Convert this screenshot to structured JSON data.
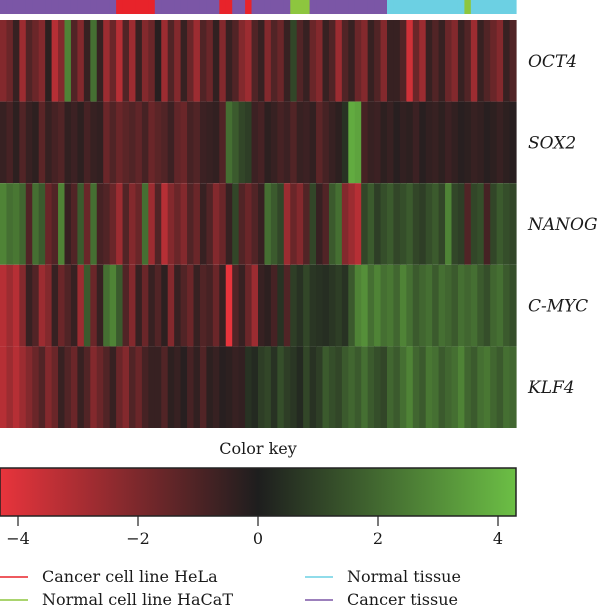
{
  "chart_data": {
    "type": "heatmap",
    "genes": [
      "OCT4",
      "SOX2",
      "NANOG",
      "C-MYC",
      "KLF4"
    ],
    "n_samples": 80,
    "sample_groups": [
      "ct",
      "ct",
      "ct",
      "ct",
      "ct",
      "ct",
      "ct",
      "ct",
      "ct",
      "ct",
      "ct",
      "ct",
      "ct",
      "ct",
      "ct",
      "ct",
      "ct",
      "ct",
      "hela",
      "hela",
      "hela",
      "hela",
      "hela",
      "hela",
      "ct",
      "ct",
      "ct",
      "ct",
      "ct",
      "ct",
      "ct",
      "ct",
      "ct",
      "ct",
      "hela",
      "hela",
      "ct",
      "ct",
      "hela",
      "ct",
      "ct",
      "ct",
      "ct",
      "ct",
      "ct",
      "hacat",
      "hacat",
      "hacat",
      "ct",
      "ct",
      "ct",
      "ct",
      "ct",
      "ct",
      "ct",
      "ct",
      "ct",
      "ct",
      "ct",
      "ct",
      "nt",
      "nt",
      "nt",
      "nt",
      "nt",
      "nt",
      "nt",
      "nt",
      "nt",
      "nt",
      "nt",
      "nt",
      "hacat",
      "nt",
      "nt",
      "nt",
      "nt",
      "nt",
      "nt",
      "nt"
    ],
    "values": {
      "OCT4": [
        -2.0,
        -1.5,
        -0.5,
        -2.5,
        -1.0,
        -1.5,
        -2.0,
        -0.3,
        -3.0,
        -2.0,
        2.5,
        -1.0,
        -2.0,
        -0.5,
        2.0,
        -0.5,
        -2.5,
        -1.5,
        -3.0,
        -1.0,
        -2.5,
        -0.5,
        -2.0,
        -1.5,
        -0.2,
        -2.5,
        -1.0,
        -2.0,
        -0.5,
        -1.5,
        -2.5,
        -1.0,
        -1.5,
        -0.4,
        -2.0,
        -0.5,
        -1.0,
        -2.0,
        -2.5,
        -1.0,
        -0.5,
        -2.0,
        -1.0,
        -1.5,
        -0.5,
        1.0,
        -1.0,
        -0.5,
        -1.5,
        -2.0,
        -0.5,
        -1.0,
        -2.5,
        -1.0,
        -0.5,
        -1.5,
        -2.0,
        -0.5,
        -1.0,
        -2.0,
        -0.5,
        -0.5,
        -1.0,
        -3.5,
        -1.5,
        -2.5,
        -0.5,
        -1.0,
        -0.5,
        -1.5,
        -2.0,
        -0.5,
        -1.0,
        -2.5,
        -0.5,
        -1.0,
        -1.5,
        -2.0,
        -0.5,
        -1.0
      ],
      "SOX2": [
        -0.5,
        -0.8,
        -0.3,
        -1.0,
        -0.5,
        -0.3,
        -1.2,
        -0.5,
        -0.8,
        -1.0,
        -0.4,
        -0.6,
        -0.3,
        -0.8,
        -0.5,
        -0.4,
        -1.5,
        -1.0,
        -1.5,
        -1.2,
        -1.0,
        -1.3,
        -0.8,
        -1.5,
        -1.2,
        -1.0,
        -0.6,
        -1.3,
        -1.5,
        -0.8,
        -1.0,
        -0.6,
        -0.5,
        -0.4,
        -1.0,
        2.0,
        1.5,
        1.0,
        0.8,
        -0.6,
        -0.8,
        -0.3,
        -0.5,
        -0.8,
        -0.6,
        -1.0,
        -0.5,
        -0.6,
        -0.4,
        -1.2,
        -0.8,
        -0.5,
        -0.3,
        0.5,
        3.5,
        3.3,
        -0.8,
        -0.5,
        -0.6,
        -0.3,
        -0.5,
        -0.2,
        -0.4,
        -0.3,
        -0.6,
        -0.2,
        -0.4,
        -0.5,
        -0.3,
        -0.6,
        -0.4,
        -0.2,
        -0.3,
        -0.5,
        -0.4,
        -0.2,
        -0.3,
        -0.5,
        -0.3,
        -0.2
      ],
      "NANOG": [
        2.5,
        2.0,
        2.2,
        1.8,
        -1.0,
        2.0,
        1.5,
        -1.5,
        -1.0,
        2.5,
        -0.5,
        -1.0,
        1.5,
        -1.5,
        2.0,
        -0.8,
        -1.0,
        -1.5,
        -2.5,
        -1.0,
        -2.0,
        -1.5,
        2.0,
        -2.5,
        -1.0,
        -3.0,
        -2.0,
        -1.5,
        -2.0,
        -1.0,
        -1.5,
        -0.5,
        -1.0,
        -2.0,
        -1.5,
        -0.5,
        1.0,
        -1.0,
        -1.5,
        -1.0,
        -0.5,
        2.0,
        1.5,
        1.0,
        -2.5,
        -1.5,
        -2.0,
        -1.0,
        1.0,
        -0.5,
        -1.0,
        1.5,
        2.0,
        -2.0,
        -2.5,
        -3.0,
        1.0,
        1.5,
        0.8,
        1.2,
        1.5,
        1.0,
        1.2,
        1.5,
        1.0,
        0.8,
        1.2,
        1.5,
        1.0,
        2.5,
        1.0,
        0.8,
        -1.0,
        1.0,
        1.2,
        -0.8,
        1.0,
        1.5,
        1.2,
        1.0
      ],
      "C-MYC": [
        -3.0,
        -2.5,
        -3.0,
        -2.0,
        -0.5,
        -1.0,
        -2.5,
        -2.0,
        -0.5,
        -1.5,
        -1.0,
        -0.5,
        -2.5,
        1.5,
        -1.5,
        -0.5,
        2.0,
        2.5,
        1.5,
        -1.0,
        -2.0,
        -0.5,
        -1.5,
        -0.5,
        -1.0,
        -0.3,
        -2.0,
        -0.5,
        -1.0,
        -1.5,
        -0.5,
        -1.0,
        -0.8,
        -1.5,
        -0.5,
        -4.0,
        -1.0,
        -0.5,
        -1.5,
        -2.5,
        -0.5,
        -0.3,
        -0.8,
        0.5,
        -1.0,
        0.8,
        0.5,
        1.0,
        0.6,
        0.5,
        0.4,
        0.6,
        0.8,
        0.5,
        1.5,
        2.5,
        2.8,
        2.0,
        2.5,
        2.0,
        2.2,
        1.8,
        2.5,
        2.0,
        1.5,
        1.8,
        2.0,
        1.5,
        2.0,
        1.8,
        1.5,
        2.0,
        1.8,
        2.0,
        1.5,
        1.2,
        1.8,
        2.0,
        1.5,
        1.2
      ],
      "KLF4": [
        -3.0,
        -2.5,
        -3.0,
        -2.5,
        -2.0,
        -1.5,
        -1.0,
        -2.0,
        -1.5,
        -0.5,
        -1.0,
        -1.5,
        -0.5,
        -1.0,
        -2.0,
        -1.5,
        -1.0,
        -0.5,
        -1.5,
        -2.0,
        -1.0,
        -1.5,
        -0.8,
        -0.5,
        -0.5,
        -1.0,
        -0.3,
        -0.5,
        -0.2,
        -0.8,
        -0.4,
        -1.0,
        -0.3,
        -0.5,
        -0.2,
        -0.3,
        -0.5,
        -0.4,
        0.5,
        0.3,
        0.8,
        1.0,
        0.5,
        1.2,
        0.8,
        0.6,
        0.3,
        1.0,
        0.5,
        0.8,
        1.5,
        1.2,
        1.0,
        1.5,
        1.8,
        1.5,
        2.0,
        1.5,
        1.2,
        1.0,
        1.8,
        1.5,
        2.0,
        2.5,
        1.8,
        1.5,
        2.2,
        2.0,
        1.5,
        1.8,
        2.0,
        2.5,
        1.8,
        1.5,
        2.0,
        2.2,
        1.8,
        1.5,
        2.0,
        1.8
      ]
    },
    "color_key": {
      "title": "Color key",
      "range": [
        -4.3,
        4.3
      ],
      "ticks": [
        -4,
        -2,
        0,
        2,
        4
      ],
      "tick_labels": [
        "−4",
        "−2",
        "0",
        "2",
        "4"
      ],
      "low_color": "#e8343c",
      "mid_color": "#1e1e1e",
      "high_color": "#6cbf45"
    },
    "legend": {
      "placement": "bottom",
      "entries": [
        {
          "key": "hela",
          "label": "Cancer cell line HeLa",
          "color": "#e8232a"
        },
        {
          "key": "hacat",
          "label": "Normal cell line HaCaT",
          "color": "#8dc63f"
        },
        {
          "key": "nt",
          "label": "Normal tissue",
          "color": "#6cd0e3"
        },
        {
          "key": "ct",
          "label": "Cancer tissue",
          "color": "#7b56a6"
        }
      ]
    }
  }
}
